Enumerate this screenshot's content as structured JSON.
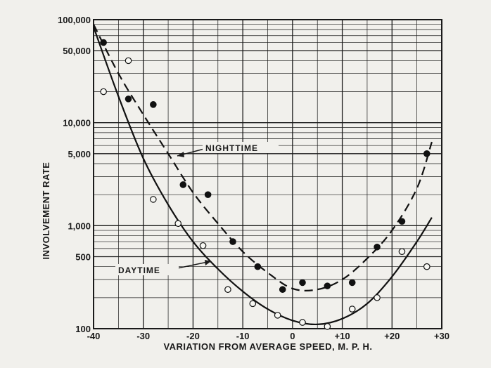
{
  "chart_data": {
    "type": "scatter",
    "xlabel": "VARIATION FROM AVERAGE SPEED, M. P. H.",
    "ylabel": "INVOLVEMENT RATE",
    "xlim": [
      -40,
      30
    ],
    "ylim": [
      100,
      100000
    ],
    "yscale": "log",
    "grid": true,
    "x_ticks": [
      -40,
      -30,
      -20,
      -10,
      0,
      10,
      20,
      30
    ],
    "x_tick_labels": [
      "-40",
      "-30",
      "-20",
      "-10",
      "0",
      "+10",
      "+20",
      "+30"
    ],
    "y_ticks": [
      100,
      500,
      1000,
      5000,
      10000,
      50000,
      100000
    ],
    "y_tick_labels": [
      "100",
      "500",
      "1,000",
      "5,000",
      "10,000",
      "50,000",
      "100,000"
    ],
    "series": [
      {
        "name": "NIGHTTIME",
        "marker": "filled-circle",
        "line": "dashed",
        "points": [
          [
            -38,
            60000
          ],
          [
            -33,
            17000
          ],
          [
            -28,
            15000
          ],
          [
            -22,
            2500
          ],
          [
            -17,
            2000
          ],
          [
            -12,
            700
          ],
          [
            -7,
            400
          ],
          [
            -2,
            240
          ],
          [
            2,
            280
          ],
          [
            7,
            260
          ],
          [
            12,
            280
          ],
          [
            17,
            620
          ],
          [
            22,
            1100
          ],
          [
            27,
            5000
          ]
        ],
        "curve": [
          [
            -40,
            90000
          ],
          [
            -35,
            30000
          ],
          [
            -30,
            12000
          ],
          [
            -25,
            5000
          ],
          [
            -20,
            2100
          ],
          [
            -15,
            1050
          ],
          [
            -10,
            560
          ],
          [
            -5,
            350
          ],
          [
            0,
            245
          ],
          [
            5,
            240
          ],
          [
            10,
            300
          ],
          [
            15,
            480
          ],
          [
            20,
            900
          ],
          [
            25,
            2300
          ],
          [
            28,
            6500
          ]
        ]
      },
      {
        "name": "DAYTIME",
        "marker": "open-circle",
        "line": "solid",
        "points": [
          [
            -38,
            20000
          ],
          [
            -33,
            40000
          ],
          [
            -28,
            1800
          ],
          [
            -23,
            1050
          ],
          [
            -18,
            640
          ],
          [
            -13,
            240
          ],
          [
            -8,
            175
          ],
          [
            -3,
            135
          ],
          [
            2,
            115
          ],
          [
            7,
            105
          ],
          [
            12,
            155
          ],
          [
            17,
            200
          ],
          [
            22,
            560
          ],
          [
            27,
            400
          ]
        ],
        "curve": [
          [
            -40,
            85000
          ],
          [
            -35,
            18000
          ],
          [
            -30,
            4500
          ],
          [
            -25,
            1600
          ],
          [
            -20,
            700
          ],
          [
            -15,
            380
          ],
          [
            -10,
            230
          ],
          [
            -5,
            155
          ],
          [
            0,
            120
          ],
          [
            5,
            110
          ],
          [
            10,
            125
          ],
          [
            15,
            175
          ],
          [
            20,
            320
          ],
          [
            25,
            700
          ],
          [
            28,
            1200
          ]
        ]
      }
    ]
  }
}
